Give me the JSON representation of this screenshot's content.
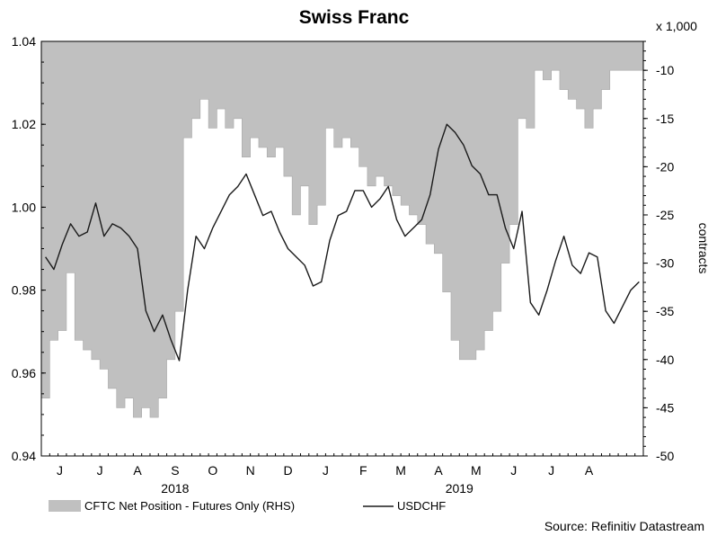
{
  "chart_data": {
    "type": "area+line",
    "title": "Swiss Franc",
    "source": "Source: Refinitiv Datastream",
    "left_axis": {
      "ylim": [
        0.94,
        1.04
      ],
      "ticks": [
        "0.94",
        "0.96",
        "0.98",
        "1.00",
        "1.02",
        "1.04"
      ],
      "tick_values": [
        0.94,
        0.96,
        0.98,
        1.0,
        1.02,
        1.04
      ]
    },
    "right_axis": {
      "label": "contracts",
      "unit_label": "x 1,000",
      "ylim": [
        -50,
        -7
      ],
      "ticks": [
        "-50",
        "-45",
        "-40",
        "-35",
        "-30",
        "-25",
        "-20",
        "-15",
        "-10"
      ],
      "tick_values": [
        -50,
        -45,
        -40,
        -35,
        -30,
        -25,
        -20,
        -15,
        -10
      ]
    },
    "x_axis": {
      "range_weeks": [
        0,
        72
      ],
      "months": [
        "J",
        "J",
        "A",
        "S",
        "O",
        "N",
        "D",
        "J",
        "F",
        "M",
        "A",
        "M",
        "J",
        "J",
        "A"
      ],
      "month_positions": [
        2.2,
        7.0,
        11.5,
        16.0,
        20.5,
        25.0,
        29.5,
        34.0,
        38.5,
        43.0,
        47.5,
        52.0,
        56.5,
        61.0,
        65.5
      ],
      "years": [
        "2018",
        "2019"
      ],
      "year_positions": [
        16.0,
        50.0
      ]
    },
    "legend": {
      "area_label": "CFTC Net Position - Futures Only (RHS)",
      "line_label": "USDCHF"
    },
    "series": [
      {
        "name": "CFTC Net Position - Futures Only (RHS)",
        "type": "area",
        "color": "#c0c0c0",
        "x": [
          0,
          1,
          2,
          3,
          4,
          5,
          6,
          7,
          8,
          9,
          10,
          11,
          12,
          13,
          14,
          15,
          16,
          17,
          18,
          19,
          20,
          21,
          22,
          23,
          24,
          25,
          26,
          27,
          28,
          29,
          30,
          31,
          32,
          33,
          34,
          35,
          36,
          37,
          38,
          39,
          40,
          41,
          42,
          43,
          44,
          45,
          46,
          47,
          48,
          49,
          50,
          51,
          52,
          53,
          54,
          55,
          56,
          57,
          58,
          59,
          60,
          61,
          62,
          63,
          64,
          65,
          66,
          67,
          68,
          69,
          70,
          71
        ],
        "values": [
          -44,
          -38,
          -37,
          -31,
          -38,
          -39,
          -40,
          -41,
          -43,
          -45,
          -44,
          -46,
          -45,
          -46,
          -44,
          -40,
          -35,
          -17,
          -15,
          -13,
          -16,
          -14,
          -16,
          -15,
          -19,
          -17,
          -18,
          -19,
          -18,
          -21,
          -25,
          -22,
          -26,
          -24,
          -16,
          -18,
          -17,
          -18,
          -20,
          -22,
          -21,
          -22,
          -23,
          -24,
          -25,
          -26,
          -28,
          -29,
          -33,
          -38,
          -40,
          -40,
          -39,
          -37,
          -35,
          -30,
          -26,
          -15,
          -16,
          -10,
          -11,
          -10,
          -12,
          -13,
          -14,
          -16,
          -14,
          -12,
          -10,
          -10,
          -10,
          -10
        ]
      },
      {
        "name": "USDCHF",
        "type": "line",
        "color": "#1a1a1a",
        "x": [
          0,
          1,
          2,
          3,
          4,
          5,
          6,
          7,
          8,
          9,
          10,
          11,
          12,
          13,
          14,
          15,
          16,
          17,
          18,
          19,
          20,
          21,
          22,
          23,
          24,
          25,
          26,
          27,
          28,
          29,
          30,
          31,
          32,
          33,
          34,
          35,
          36,
          37,
          38,
          39,
          40,
          41,
          42,
          43,
          44,
          45,
          46,
          47,
          48,
          49,
          50,
          51,
          52,
          53,
          54,
          55,
          56,
          57,
          58,
          59,
          60,
          61,
          62,
          63,
          64,
          65,
          66,
          67,
          68,
          69,
          70,
          71
        ],
        "values": [
          0.988,
          0.985,
          0.991,
          0.996,
          0.993,
          0.994,
          1.001,
          0.993,
          0.996,
          0.995,
          0.993,
          0.99,
          0.975,
          0.97,
          0.974,
          0.968,
          0.963,
          0.98,
          0.993,
          0.99,
          0.995,
          0.999,
          1.003,
          1.005,
          1.008,
          1.003,
          0.998,
          0.999,
          0.994,
          0.99,
          0.988,
          0.986,
          0.981,
          0.982,
          0.992,
          0.998,
          0.999,
          1.004,
          1.004,
          1.0,
          1.002,
          1.005,
          0.997,
          0.993,
          0.995,
          0.997,
          1.003,
          1.014,
          1.02,
          1.018,
          1.015,
          1.01,
          1.008,
          1.003,
          1.003,
          0.995,
          0.99,
          0.999,
          0.977,
          0.974,
          0.98,
          0.987,
          0.993,
          0.986,
          0.984,
          0.989,
          0.988,
          0.975,
          0.972,
          0.976,
          0.98,
          0.982
        ]
      }
    ]
  }
}
